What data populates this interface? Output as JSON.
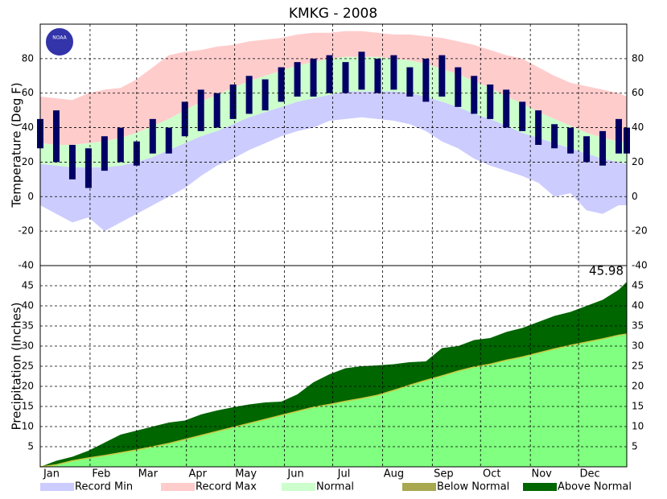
{
  "chart_data": [
    {
      "type": "temperature-bands",
      "title": "KMKG - 2008",
      "ylabel": "Temperature (Deg F)",
      "logo": "NOAA",
      "x": [
        1,
        11,
        21,
        31,
        41,
        51,
        61,
        71,
        81,
        91,
        101,
        111,
        121,
        131,
        141,
        151,
        161,
        171,
        181,
        191,
        201,
        211,
        221,
        231,
        241,
        251,
        261,
        271,
        281,
        291,
        301,
        311,
        321,
        331,
        341,
        351,
        361,
        366
      ],
      "xlim": [
        1,
        366
      ],
      "ylim": [
        -40,
        100
      ],
      "yticks": [
        -40,
        -20,
        0,
        20,
        40,
        60,
        80
      ],
      "grid": true,
      "series": [
        {
          "name": "Record Min",
          "color": "#ccccff",
          "values": [
            -5,
            -10,
            -15,
            -12,
            -20,
            -15,
            -10,
            -5,
            0,
            5,
            12,
            18,
            22,
            27,
            31,
            35,
            38,
            40,
            44,
            45,
            46,
            45,
            44,
            42,
            38,
            32,
            28,
            22,
            18,
            15,
            12,
            8,
            0,
            2,
            -8,
            -10,
            -5,
            -5
          ]
        },
        {
          "name": "Record Max",
          "color": "#ffcccc",
          "values": [
            58,
            57,
            56,
            60,
            62,
            63,
            68,
            75,
            82,
            84,
            85,
            87,
            88,
            90,
            91,
            92,
            94,
            95,
            95,
            96,
            96,
            95,
            94,
            94,
            93,
            92,
            90,
            88,
            85,
            82,
            80,
            75,
            70,
            66,
            64,
            62,
            60,
            58
          ]
        },
        {
          "name": "Normal",
          "color": "#ccffcc",
          "low": [
            19,
            18,
            17,
            17,
            17,
            18,
            20,
            23,
            27,
            31,
            35,
            38,
            42,
            46,
            49,
            52,
            55,
            57,
            59,
            61,
            61,
            61,
            61,
            60,
            58,
            55,
            52,
            48,
            45,
            41,
            37,
            34,
            31,
            28,
            25,
            22,
            20,
            19
          ],
          "high": [
            31,
            30,
            30,
            31,
            32,
            34,
            37,
            41,
            45,
            50,
            55,
            59,
            63,
            67,
            70,
            73,
            76,
            78,
            80,
            81,
            81,
            81,
            80,
            79,
            77,
            74,
            71,
            67,
            63,
            58,
            54,
            49,
            45,
            41,
            37,
            34,
            32,
            31
          ]
        }
      ],
      "observed": {
        "color": "#000066",
        "high": [
          45,
          50,
          30,
          28,
          35,
          40,
          32,
          45,
          40,
          55,
          62,
          60,
          65,
          70,
          68,
          75,
          78,
          80,
          82,
          78,
          84,
          80,
          82,
          75,
          80,
          82,
          75,
          70,
          65,
          62,
          55,
          50,
          42,
          40,
          35,
          38,
          45,
          40
        ],
        "low": [
          28,
          20,
          10,
          5,
          15,
          20,
          18,
          25,
          25,
          35,
          38,
          40,
          45,
          48,
          50,
          55,
          58,
          58,
          60,
          60,
          62,
          60,
          62,
          58,
          55,
          58,
          52,
          48,
          45,
          40,
          38,
          30,
          28,
          25,
          20,
          18,
          25,
          25
        ]
      }
    },
    {
      "type": "cumulative-precip",
      "ylabel": "Precipitation (Inches)",
      "x": [
        1,
        11,
        21,
        31,
        41,
        51,
        61,
        71,
        81,
        91,
        101,
        111,
        121,
        131,
        141,
        151,
        161,
        171,
        181,
        191,
        201,
        211,
        221,
        231,
        241,
        251,
        261,
        271,
        281,
        291,
        301,
        311,
        321,
        331,
        341,
        351,
        361,
        366
      ],
      "xlim": [
        1,
        366
      ],
      "xticks": [
        {
          "value": 1,
          "label": "Jan"
        },
        {
          "value": 32,
          "label": "Feb"
        },
        {
          "value": 61,
          "label": "Mar"
        },
        {
          "value": 92,
          "label": "Apr"
        },
        {
          "value": 122,
          "label": "May"
        },
        {
          "value": 153,
          "label": "Jun"
        },
        {
          "value": 183,
          "label": "Jul"
        },
        {
          "value": 214,
          "label": "Aug"
        },
        {
          "value": 245,
          "label": "Sep"
        },
        {
          "value": 275,
          "label": "Oct"
        },
        {
          "value": 306,
          "label": "Nov"
        },
        {
          "value": 336,
          "label": "Dec"
        }
      ],
      "ylim": [
        0,
        50
      ],
      "yticks": [
        5,
        10,
        15,
        20,
        25,
        30,
        35,
        40,
        45
      ],
      "grid": true,
      "normal_color": "#80ff80",
      "normal": [
        0,
        0.5,
        1.5,
        2.2,
        2.8,
        3.5,
        4.2,
        5,
        5.8,
        6.8,
        7.8,
        8.8,
        9.8,
        10.8,
        11.8,
        12.8,
        13.8,
        14.8,
        15.5,
        16.3,
        17,
        17.8,
        19,
        20.3,
        21.5,
        22.6,
        23.8,
        24.8,
        25.5,
        26.5,
        27.3,
        28.3,
        29.3,
        30.2,
        31,
        31.8,
        32.7,
        33
      ],
      "observed": [
        0,
        1.5,
        2.5,
        4,
        6,
        8,
        9,
        10,
        11,
        11.5,
        13,
        14,
        14.8,
        15.5,
        16,
        16.2,
        18,
        21,
        23,
        24.5,
        25,
        25.2,
        25.5,
        26,
        26.2,
        29.5,
        30,
        31.5,
        32,
        33.5,
        34.5,
        36,
        37.5,
        38.5,
        40,
        41.5,
        44,
        45.98
      ],
      "series": [
        {
          "name": "Below Normal",
          "color": "#a8a850"
        },
        {
          "name": "Above Normal",
          "color": "#006600"
        }
      ]
    }
  ]
}
